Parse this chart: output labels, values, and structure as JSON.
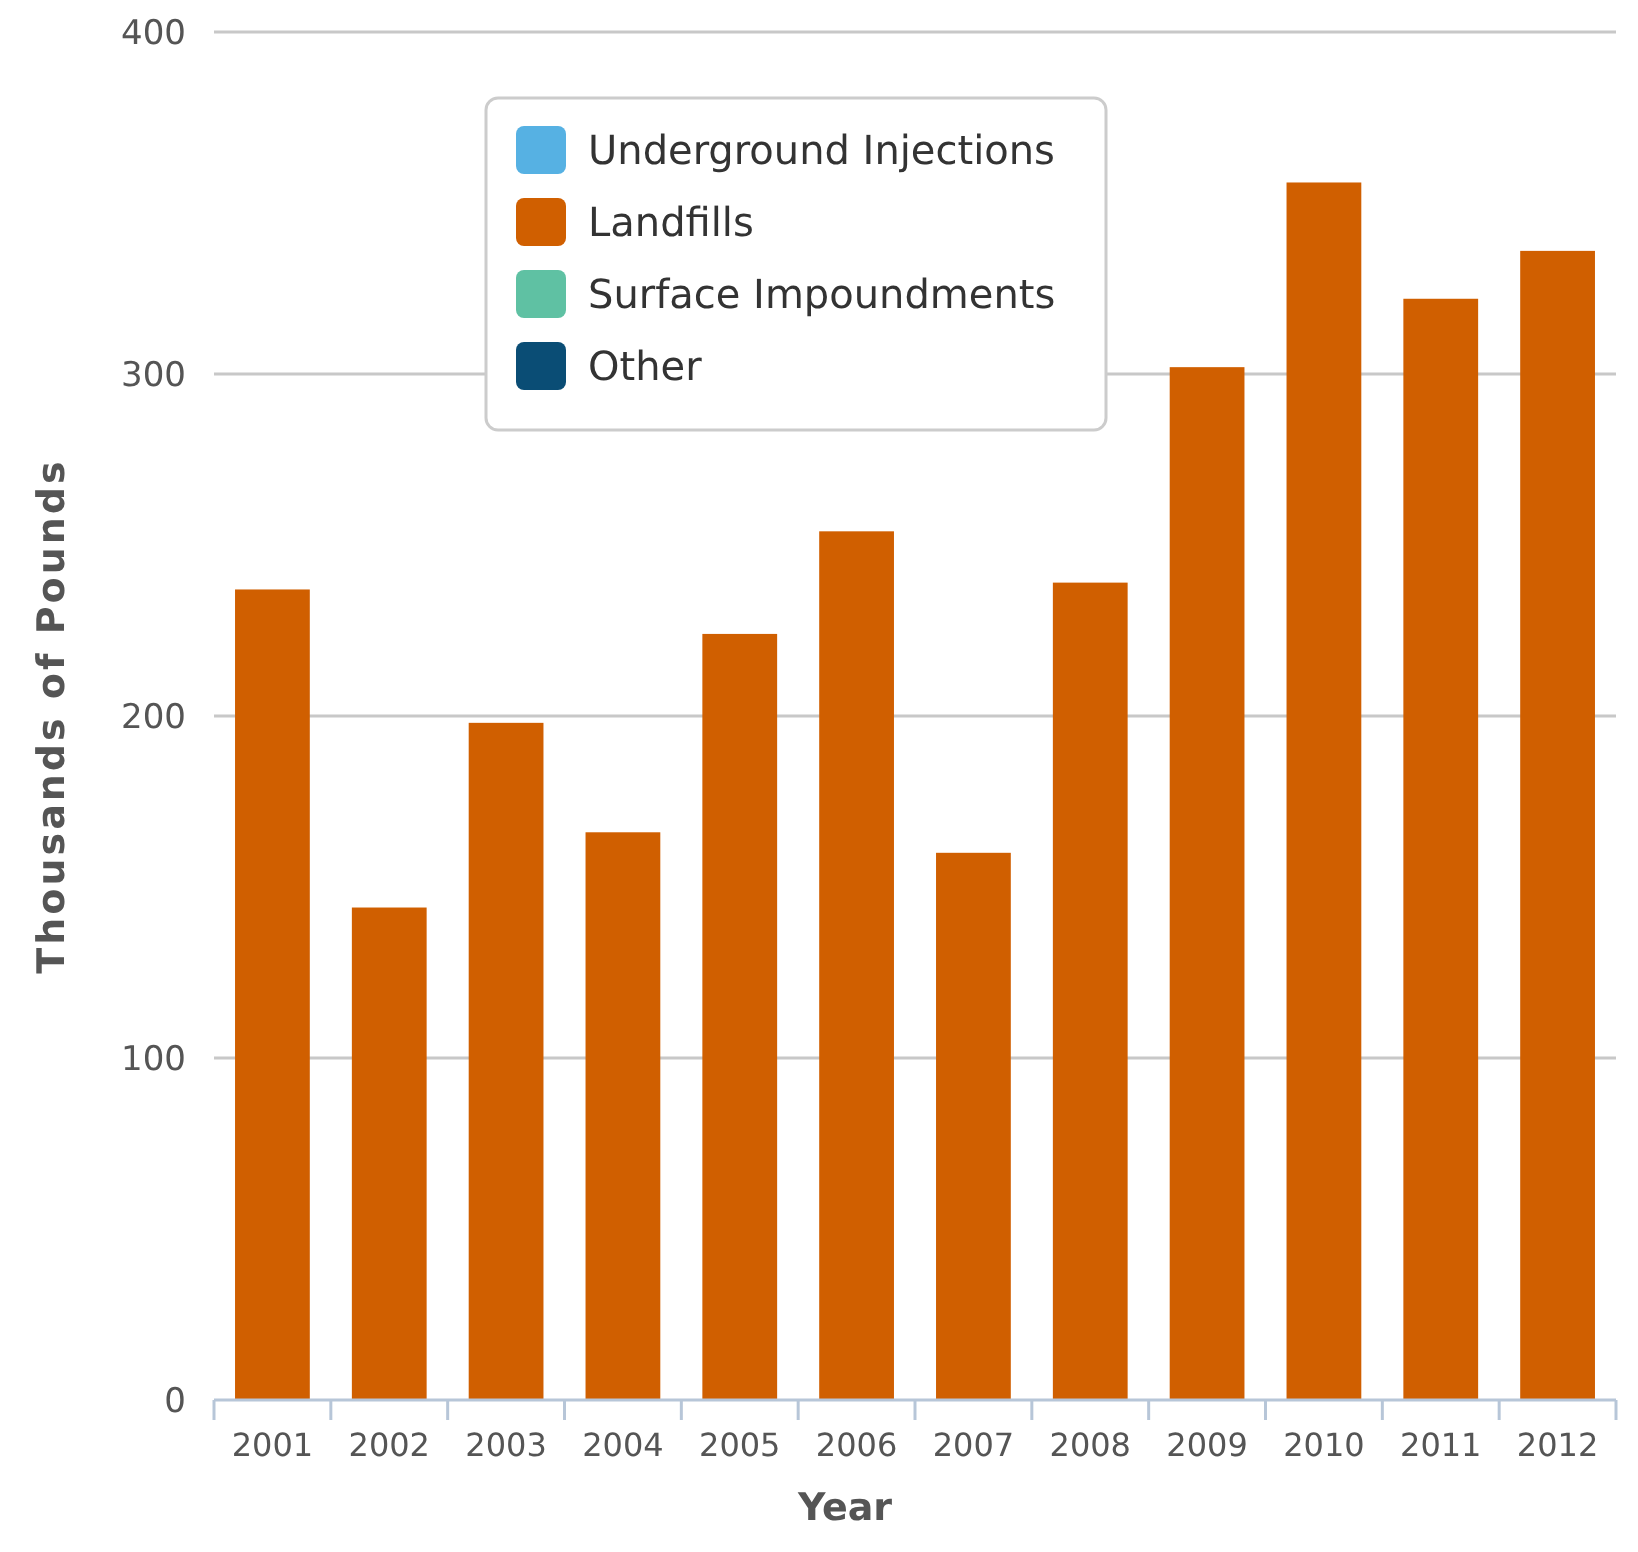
{
  "chart_data": {
    "type": "bar",
    "xlabel": "Year",
    "ylabel": "Thousands of Pounds",
    "categories": [
      "2001",
      "2002",
      "2003",
      "2004",
      "2005",
      "2006",
      "2007",
      "2008",
      "2009",
      "2010",
      "2011",
      "2012"
    ],
    "series": [
      {
        "name": "Underground Injections",
        "color": "#56b1e3",
        "values": [
          0,
          0,
          0,
          0,
          0,
          0,
          0,
          0,
          0,
          0,
          0,
          0
        ]
      },
      {
        "name": "Landfills",
        "color": "#d05f00",
        "values": [
          237,
          144,
          198,
          166,
          224,
          254,
          160,
          239,
          302,
          356,
          322,
          336
        ]
      },
      {
        "name": "Surface Impoundments",
        "color": "#5fc1a3",
        "values": [
          0,
          0,
          0,
          0,
          0,
          0,
          0,
          0,
          0,
          0,
          0,
          0
        ]
      },
      {
        "name": "Other",
        "color": "#0a4d75",
        "values": [
          0,
          0,
          0,
          0,
          0,
          0,
          0,
          0,
          0,
          0,
          0,
          0
        ]
      }
    ],
    "stacked": true,
    "ylim": [
      0,
      400
    ],
    "yticks": [
      0,
      100,
      200,
      300,
      400
    ],
    "grid": "y",
    "legend": "top left"
  }
}
